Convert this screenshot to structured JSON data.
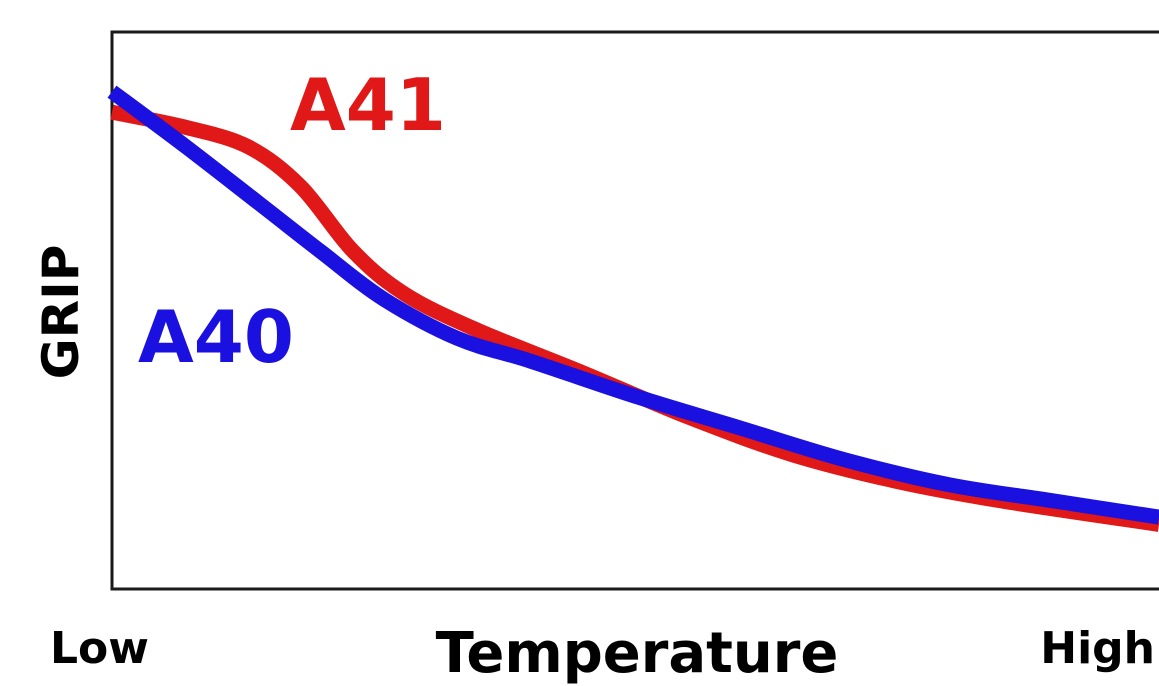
{
  "chart_data": {
    "type": "line",
    "title": "",
    "xlabel": "Temperature",
    "ylabel": "GRIP",
    "xlim": [
      0,
      100
    ],
    "ylim": [
      0,
      100
    ],
    "x_tick_labels": {
      "low": "Low",
      "high": "High"
    },
    "grid": false,
    "series": [
      {
        "name": "A41",
        "color": "#e01818",
        "points": [
          [
            0,
            85.6
          ],
          [
            7,
            82.9
          ],
          [
            13,
            79.4
          ],
          [
            18,
            72.3
          ],
          [
            23,
            60.7
          ],
          [
            28,
            52.9
          ],
          [
            35,
            46.4
          ],
          [
            45,
            38.8
          ],
          [
            55,
            30.9
          ],
          [
            65,
            24.1
          ],
          [
            75,
            19.3
          ],
          [
            85,
            15.8
          ],
          [
            100,
            11.6
          ]
        ]
      },
      {
        "name": "A40",
        "color": "#1a10e0",
        "points": [
          [
            0,
            89.3
          ],
          [
            7,
            79.5
          ],
          [
            14,
            69.3
          ],
          [
            20,
            60.5
          ],
          [
            26,
            52.0
          ],
          [
            33,
            45.0
          ],
          [
            40,
            40.9
          ],
          [
            50,
            34.6
          ],
          [
            60,
            28.9
          ],
          [
            70,
            23.2
          ],
          [
            80,
            18.7
          ],
          [
            90,
            15.8
          ],
          [
            100,
            12.9
          ]
        ]
      }
    ]
  }
}
